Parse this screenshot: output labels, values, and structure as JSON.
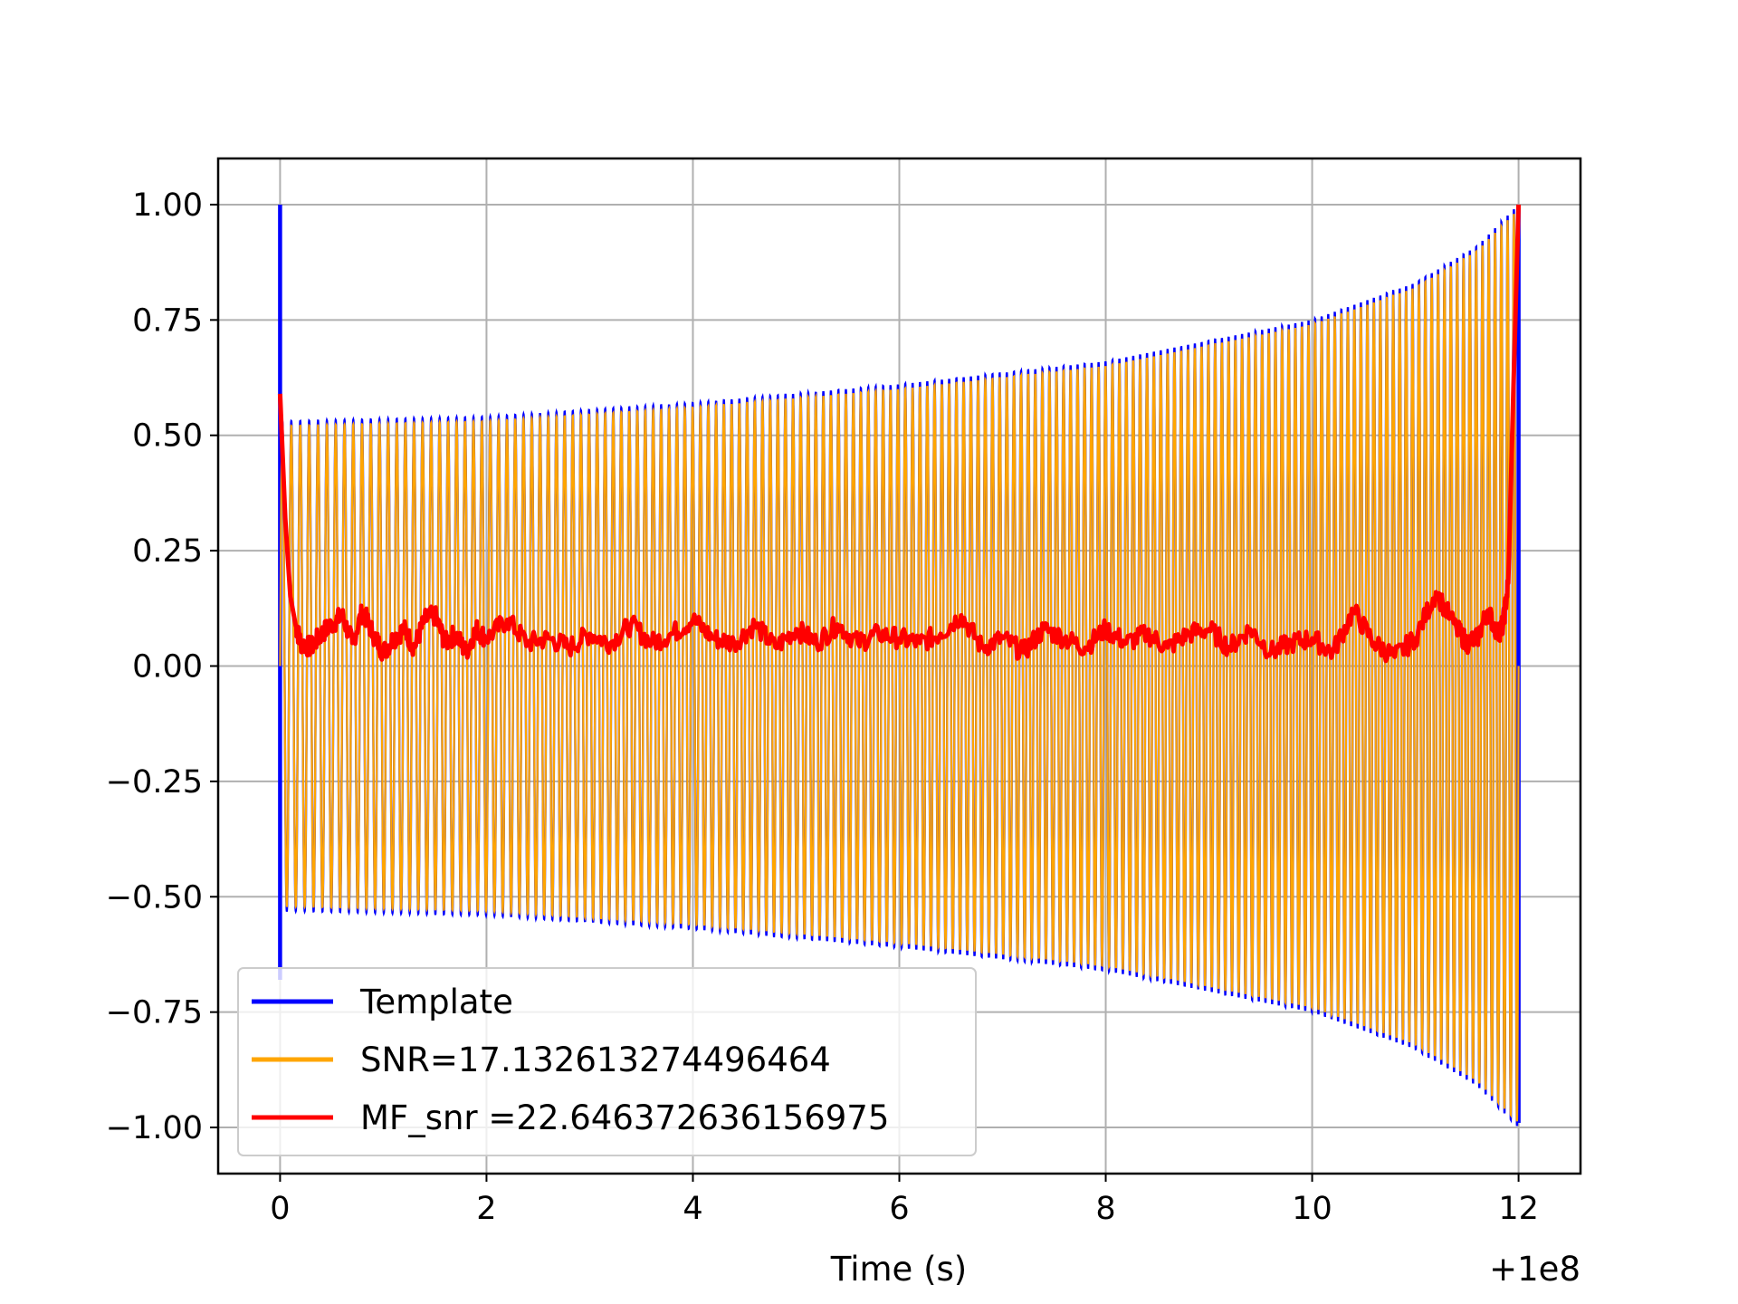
{
  "chart_data": {
    "type": "line",
    "title": "",
    "xlabel": "Time (s)",
    "ylabel": "",
    "x_offset_label": "+1e8",
    "xlim": [
      -0.6,
      12.6
    ],
    "ylim": [
      -1.1,
      1.1
    ],
    "grid": true,
    "legend_position": "lower-left",
    "x_ticks": [
      0,
      2,
      4,
      6,
      8,
      10,
      12
    ],
    "x_tick_labels": [
      "0",
      "2",
      "4",
      "6",
      "8",
      "10",
      "12"
    ],
    "y_ticks": [
      1.0,
      0.75,
      0.5,
      0.25,
      0.0,
      -0.25,
      -0.5,
      -0.75,
      -1.0
    ],
    "y_tick_labels": [
      "1.00",
      "0.75",
      "0.50",
      "0.25",
      "0.00",
      "−0.25",
      "−0.50",
      "−0.75",
      "−1.00"
    ],
    "series": [
      {
        "name": "Template",
        "color": "#0000ff",
        "kind": "chirp",
        "x_range": [
          0,
          12
        ],
        "cycles": 168,
        "envelope_x": [
          0,
          2,
          4,
          6,
          8,
          10,
          11,
          11.6,
          12
        ],
        "envelope_y": [
          0.53,
          0.54,
          0.57,
          0.61,
          0.66,
          0.75,
          0.83,
          0.91,
          1.0
        ],
        "spike_start": {
          "x": 0.0,
          "ymax": 1.0,
          "ymin": -0.68
        },
        "spike_end": {
          "x": 12.0,
          "ymax": 1.0,
          "ymin": -0.99
        }
      },
      {
        "name": "SNR=17.132613274496464",
        "color": "#ffa500",
        "kind": "chirp",
        "x_range": [
          0,
          12
        ],
        "cycles": 168,
        "envelope_x": [
          0,
          2,
          4,
          6,
          8,
          10,
          11,
          11.6,
          12
        ],
        "envelope_y": [
          0.52,
          0.53,
          0.56,
          0.6,
          0.65,
          0.74,
          0.82,
          0.9,
          0.99
        ]
      },
      {
        "name": "MF_snr =22.646372636156975",
        "color": "#ff0000",
        "kind": "line",
        "x": [
          0.0,
          0.05,
          0.1,
          0.15,
          0.2,
          0.3,
          0.4,
          0.5,
          0.6,
          0.7,
          0.8,
          0.9,
          1.0,
          1.1,
          1.2,
          1.3,
          1.4,
          1.5,
          1.6,
          1.7,
          1.8,
          1.9,
          2.0,
          2.2,
          2.4,
          2.6,
          2.8,
          3.0,
          3.2,
          3.4,
          3.6,
          3.8,
          4.0,
          4.2,
          4.4,
          4.6,
          4.8,
          5.0,
          5.2,
          5.4,
          5.6,
          5.8,
          6.0,
          6.2,
          6.4,
          6.6,
          6.8,
          7.0,
          7.2,
          7.4,
          7.6,
          7.8,
          8.0,
          8.2,
          8.4,
          8.6,
          8.8,
          9.0,
          9.2,
          9.4,
          9.6,
          9.8,
          10.0,
          10.2,
          10.4,
          10.6,
          10.8,
          11.0,
          11.2,
          11.4,
          11.5,
          11.6,
          11.7,
          11.8,
          11.85,
          11.9,
          11.95,
          12.0
        ],
        "y": [
          0.59,
          0.32,
          0.15,
          0.09,
          0.05,
          0.04,
          0.07,
          0.09,
          0.11,
          0.05,
          0.12,
          0.07,
          0.03,
          0.06,
          0.08,
          0.04,
          0.1,
          0.11,
          0.05,
          0.07,
          0.03,
          0.08,
          0.06,
          0.1,
          0.05,
          0.06,
          0.04,
          0.07,
          0.05,
          0.09,
          0.05,
          0.07,
          0.1,
          0.06,
          0.05,
          0.09,
          0.04,
          0.08,
          0.05,
          0.09,
          0.05,
          0.07,
          0.06,
          0.05,
          0.07,
          0.11,
          0.04,
          0.06,
          0.03,
          0.08,
          0.06,
          0.04,
          0.08,
          0.05,
          0.07,
          0.04,
          0.07,
          0.08,
          0.04,
          0.08,
          0.03,
          0.05,
          0.06,
          0.03,
          0.12,
          0.05,
          0.02,
          0.06,
          0.16,
          0.08,
          0.05,
          0.06,
          0.12,
          0.07,
          0.09,
          0.18,
          0.6,
          1.0
        ]
      }
    ]
  }
}
